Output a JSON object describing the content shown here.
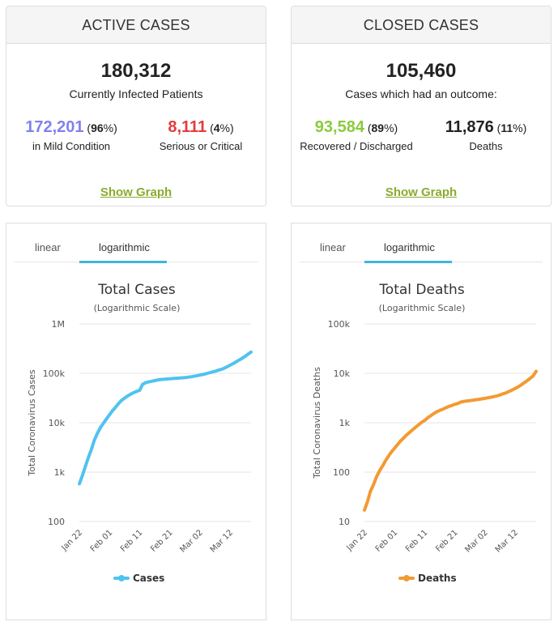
{
  "active": {
    "header": "ACTIVE CASES",
    "total": "180,312",
    "total_label": "Currently Infected Patients",
    "mild_value": "172,201",
    "mild_pct": "96",
    "mild_label": "in Mild Condition",
    "serious_value": "8,111",
    "serious_pct": "4",
    "serious_label": "Serious or Critical",
    "show_graph": "Show Graph"
  },
  "closed": {
    "header": "CLOSED CASES",
    "total": "105,460",
    "total_label": "Cases which had an outcome:",
    "recovered_value": "93,584",
    "recovered_pct": "89",
    "recovered_label": "Recovered / Discharged",
    "deaths_value": "11,876",
    "deaths_pct": "11",
    "deaths_label": "Deaths",
    "show_graph": "Show Graph"
  },
  "colors": {
    "mild": "#8080f0",
    "serious": "#e43c3c",
    "recovered": "#8acb3c",
    "link": "#8aab2f",
    "cases_line": "#4fc3f0",
    "deaths_line": "#f39a32",
    "tab_accent": "#3fb5d9"
  },
  "tabs": {
    "linear": "linear",
    "log": "logarithmic",
    "active": "logarithmic"
  },
  "chart_data": [
    {
      "type": "line",
      "title": "Total Cases",
      "subtitle": "(Logarithmic Scale)",
      "ylabel": "Total Coronavirus Cases",
      "scale": "log",
      "ylim": [
        100,
        1000000
      ],
      "yticks": [
        100,
        1000,
        10000,
        100000,
        1000000
      ],
      "yticklabels": [
        "100",
        "1k",
        "10k",
        "100k",
        "1M"
      ],
      "xticklabels": [
        "Jan 22",
        "Feb 01",
        "Feb 11",
        "Feb 21",
        "Mar 02",
        "Mar 12"
      ],
      "xtick_days": [
        0,
        10,
        20,
        30,
        40,
        50
      ],
      "xmax_day": 57,
      "legend": "bottom-center",
      "series": [
        {
          "name": "Cases",
          "color": "#4fc3f0",
          "x": [
            0,
            1,
            2,
            3,
            4,
            5,
            6,
            7,
            8,
            9,
            10,
            11,
            12,
            13,
            14,
            15,
            16,
            17,
            18,
            19,
            20,
            21,
            22,
            23,
            24,
            25,
            26,
            27,
            28,
            29,
            30,
            31,
            32,
            33,
            34,
            35,
            36,
            37,
            38,
            39,
            40,
            41,
            42,
            43,
            44,
            45,
            46,
            47,
            48,
            49,
            50,
            51,
            52,
            53,
            54,
            55,
            56,
            57
          ],
          "y": [
            580,
            850,
            1300,
            2000,
            2900,
            4500,
            6100,
            8000,
            9800,
            12000,
            14500,
            17500,
            20500,
            24500,
            28300,
            31500,
            34800,
            37600,
            40500,
            43100,
            45200,
            60000,
            64500,
            67100,
            69200,
            71300,
            73300,
            75200,
            75700,
            76700,
            77700,
            78500,
            79300,
            80100,
            81000,
            82000,
            83500,
            85000,
            87000,
            89500,
            92000,
            95000,
            98000,
            102000,
            106000,
            110000,
            115000,
            120000,
            126000,
            135000,
            146000,
            157000,
            170000,
            185000,
            200000,
            220000,
            245000,
            270000
          ]
        }
      ]
    },
    {
      "type": "line",
      "title": "Total Deaths",
      "subtitle": "(Logarithmic Scale)",
      "ylabel": "Total Coronavirus Deaths",
      "scale": "log",
      "ylim": [
        10,
        100000
      ],
      "yticks": [
        10,
        100,
        1000,
        10000,
        100000
      ],
      "yticklabels": [
        "10",
        "100",
        "1k",
        "10k",
        "100k"
      ],
      "xticklabels": [
        "Jan 22",
        "Feb 01",
        "Feb 11",
        "Feb 21",
        "Mar 02",
        "Mar 12"
      ],
      "xtick_days": [
        0,
        10,
        20,
        30,
        40,
        50
      ],
      "xmax_day": 57,
      "legend": "bottom-center",
      "series": [
        {
          "name": "Deaths",
          "color": "#f39a32",
          "x": [
            0,
            1,
            2,
            3,
            4,
            5,
            6,
            7,
            8,
            9,
            10,
            11,
            12,
            13,
            14,
            15,
            16,
            17,
            18,
            19,
            20,
            21,
            22,
            23,
            24,
            25,
            26,
            27,
            28,
            29,
            30,
            31,
            32,
            33,
            34,
            35,
            36,
            37,
            38,
            39,
            40,
            41,
            42,
            43,
            44,
            45,
            46,
            47,
            48,
            49,
            50,
            51,
            52,
            53,
            54,
            55,
            56,
            57
          ],
          "y": [
            17,
            25,
            41,
            56,
            80,
            106,
            132,
            170,
            213,
            259,
            304,
            362,
            426,
            492,
            565,
            638,
            724,
            813,
            910,
            1018,
            1115,
            1261,
            1383,
            1526,
            1669,
            1775,
            1873,
            2009,
            2126,
            2247,
            2360,
            2460,
            2618,
            2699,
            2763,
            2800,
            2858,
            2923,
            2977,
            3050,
            3117,
            3202,
            3285,
            3387,
            3494,
            3652,
            3843,
            4023,
            4295,
            4571,
            4910,
            5330,
            5800,
            6440,
            7100,
            7900,
            8900,
            11000
          ]
        }
      ]
    }
  ]
}
